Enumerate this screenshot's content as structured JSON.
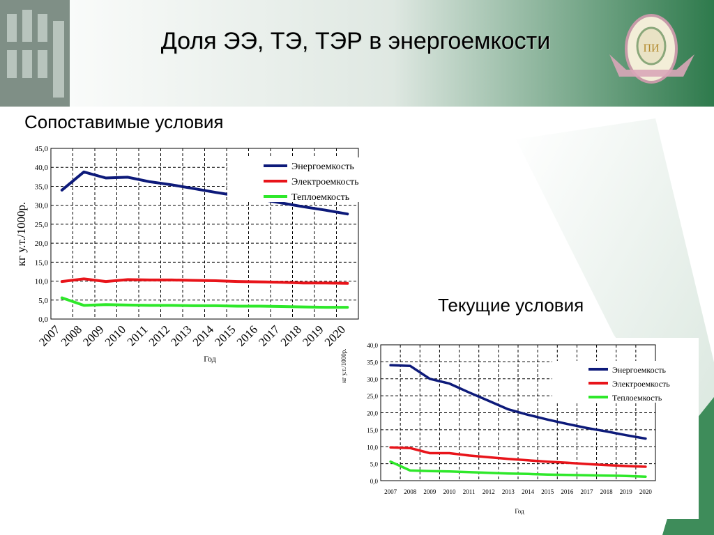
{
  "slide": {
    "title": "Доля ЭЭ, ТЭ, ТЭР в энергоемкости"
  },
  "subtitles": {
    "comparable": "Сопоставимые условия",
    "current": "Текущие условия"
  },
  "colors": {
    "energy": "#0d1a7a",
    "electric": "#e8141a",
    "heat": "#2ee82a",
    "header": "#2e7a4c"
  },
  "chart_data": [
    {
      "type": "line",
      "title": "",
      "xlabel": "Год",
      "ylabel": "кг у.т./1000р.",
      "x": [
        2007,
        2008,
        2009,
        2010,
        2011,
        2012,
        2013,
        2014,
        2015,
        2016,
        2017,
        2018,
        2019,
        2020
      ],
      "x_tick_labels": [
        "2007",
        "2008",
        "2009",
        "2010",
        "2011",
        "2012",
        "2013",
        "2014",
        "2015",
        "2016",
        "2017",
        "2018",
        "2019",
        "2020"
      ],
      "ylim": [
        0,
        45
      ],
      "y_ticks": [
        "0,0",
        "5,0",
        "10,0",
        "15,0",
        "20,0",
        "25,0",
        "30,0",
        "35,0",
        "40,0",
        "45,0"
      ],
      "grid": true,
      "legend_position": "top-right",
      "series": [
        {
          "name": "Энергоемкость",
          "color": "#0d1a7a",
          "values": [
            34.0,
            38.8,
            37.2,
            37.4,
            36.2,
            35.4,
            34.4,
            33.4,
            32.5,
            31.6,
            30.6,
            29.6,
            28.7,
            27.7
          ]
        },
        {
          "name": "Электроемкость",
          "color": "#e8141a",
          "values": [
            9.9,
            10.6,
            9.9,
            10.4,
            10.3,
            10.3,
            10.2,
            10.1,
            9.9,
            9.8,
            9.7,
            9.5,
            9.5,
            9.4
          ]
        },
        {
          "name": "Теплоемкость",
          "color": "#2ee82a",
          "values": [
            5.6,
            3.6,
            3.8,
            3.7,
            3.6,
            3.6,
            3.5,
            3.5,
            3.4,
            3.4,
            3.3,
            3.2,
            3.1,
            3.1
          ]
        }
      ]
    },
    {
      "type": "line",
      "title": "",
      "xlabel": "Год",
      "ylabel": "кг у.т./1000р.",
      "x": [
        2007,
        2008,
        2009,
        2010,
        2011,
        2012,
        2013,
        2014,
        2015,
        2016,
        2017,
        2018,
        2019,
        2020
      ],
      "x_tick_labels": [
        "2007",
        "2008",
        "2009",
        "2010",
        "2011",
        "2012",
        "2013",
        "2014",
        "2015",
        "2016",
        "2017",
        "2018",
        "2019",
        "2020"
      ],
      "ylim": [
        0,
        40
      ],
      "y_ticks": [
        "0,0",
        "5,0",
        "10,0",
        "15,0",
        "20,0",
        "25,0",
        "30,0",
        "35,0",
        "40,0"
      ],
      "grid": true,
      "legend_position": "top-right",
      "series": [
        {
          "name": "Энергоемкость",
          "color": "#0d1a7a",
          "values": [
            34.0,
            33.8,
            30.0,
            28.6,
            26.0,
            23.5,
            21.0,
            19.4,
            18.0,
            16.7,
            15.5,
            14.5,
            13.4,
            12.4
          ]
        },
        {
          "name": "Электроемкость",
          "color": "#e8141a",
          "values": [
            9.8,
            9.6,
            8.1,
            8.1,
            7.4,
            6.9,
            6.4,
            6.0,
            5.6,
            5.3,
            4.9,
            4.6,
            4.3,
            4.1
          ]
        },
        {
          "name": "Теплоемкость",
          "color": "#2ee82a",
          "values": [
            5.6,
            3.0,
            2.8,
            2.7,
            2.5,
            2.3,
            2.1,
            2.0,
            1.8,
            1.7,
            1.6,
            1.5,
            1.4,
            1.2
          ]
        }
      ]
    }
  ]
}
